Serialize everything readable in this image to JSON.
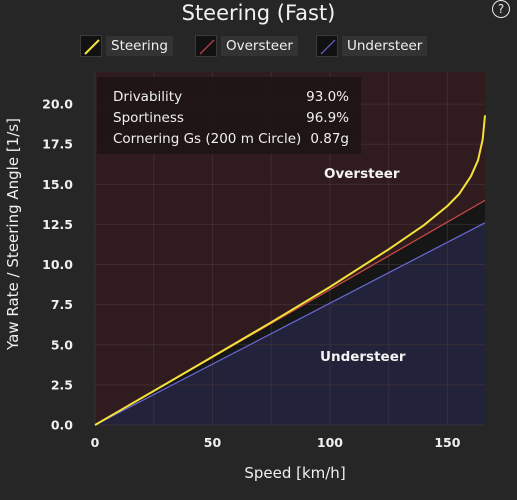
{
  "title": "Steering (Fast)",
  "help_label": "?",
  "legend": [
    {
      "label": "Steering",
      "color": "#f3e23a"
    },
    {
      "label": "Oversteer",
      "color": "#d24a4a"
    },
    {
      "label": "Understeer",
      "color": "#6a68d8"
    }
  ],
  "stats": [
    {
      "label": "Drivability",
      "value": "93.0%"
    },
    {
      "label": "Sportiness",
      "value": "96.9%"
    },
    {
      "label": "Cornering Gs (200 m Circle)",
      "value": "0.87g"
    }
  ],
  "region_labels": {
    "oversteer": "Oversteer",
    "understeer": "Understeer"
  },
  "colors": {
    "oversteer_region": "#301c1e",
    "understeer_region": "#22223a",
    "grid": "#4a3a3c",
    "steering": "#f3e23a",
    "oversteer_line": "#d24a4a",
    "understeer_line": "#6a68d8"
  },
  "chart_data": {
    "type": "line",
    "xlabel": "Speed [km/h]",
    "ylabel": "Yaw Rate / Steering Angle [1/s]",
    "xlim": [
      0,
      166
    ],
    "ylim": [
      0,
      22
    ],
    "xticks": [
      0,
      50,
      100,
      150
    ],
    "yticks": [
      0.0,
      2.5,
      5.0,
      7.5,
      10.0,
      12.5,
      15.0,
      17.5,
      20.0
    ],
    "ytick_labels": [
      "0.0",
      "2.5",
      "5.0",
      "7.5",
      "10.0",
      "12.5",
      "15.0",
      "17.5",
      "20.0"
    ],
    "grid": true,
    "series": [
      {
        "name": "Steering",
        "x": [
          0,
          25,
          50,
          75,
          100,
          125,
          140,
          150,
          155,
          160,
          163,
          165,
          166
        ],
        "y": [
          0,
          2.12,
          4.25,
          6.4,
          8.6,
          10.95,
          12.45,
          13.65,
          14.4,
          15.5,
          16.5,
          17.8,
          19.3
        ]
      },
      {
        "name": "Oversteer",
        "x": [
          0,
          166
        ],
        "y": [
          0,
          14.0
        ]
      },
      {
        "name": "Understeer",
        "x": [
          0,
          166
        ],
        "y": [
          0,
          12.6
        ]
      }
    ]
  }
}
